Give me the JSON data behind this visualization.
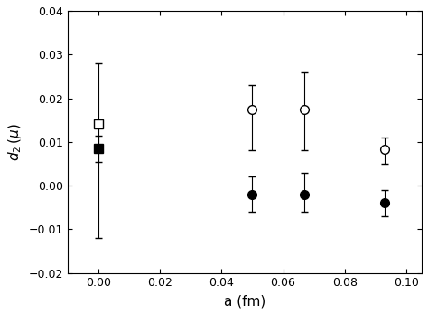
{
  "title": "",
  "xlabel": "a (fm)",
  "xlim": [
    -0.01,
    0.105
  ],
  "ylim": [
    -0.02,
    0.04
  ],
  "xticks": [
    0.0,
    0.02,
    0.04,
    0.06,
    0.08,
    0.1
  ],
  "yticks": [
    -0.02,
    -0.01,
    0.0,
    0.01,
    0.02,
    0.03,
    0.04
  ],
  "open_square": {
    "x": [
      0.0
    ],
    "y": [
      0.014
    ],
    "yerr_lo": [
      0.026
    ],
    "yerr_hi": [
      0.014
    ]
  },
  "filled_square": {
    "x": [
      0.0
    ],
    "y": [
      0.0085
    ],
    "yerr_lo": [
      0.003
    ],
    "yerr_hi": [
      0.003
    ]
  },
  "open_circle": {
    "x": [
      0.05,
      0.067,
      0.093
    ],
    "y": [
      0.0175,
      0.0175,
      0.0083
    ],
    "yerr_lo": [
      0.0095,
      0.0095,
      0.0033
    ],
    "yerr_hi": [
      0.0055,
      0.0085,
      0.0027
    ]
  },
  "filled_circle": {
    "x": [
      0.05,
      0.067,
      0.093
    ],
    "y": [
      -0.002,
      -0.002,
      -0.004
    ],
    "yerr_lo": [
      0.004,
      0.004,
      0.003
    ],
    "yerr_hi": [
      0.004,
      0.005,
      0.003
    ]
  },
  "marker_size": 7,
  "capsize": 3,
  "linewidth": 0.8,
  "elinewidth": 0.8,
  "background_color": "#ffffff",
  "axis_color": "#000000"
}
